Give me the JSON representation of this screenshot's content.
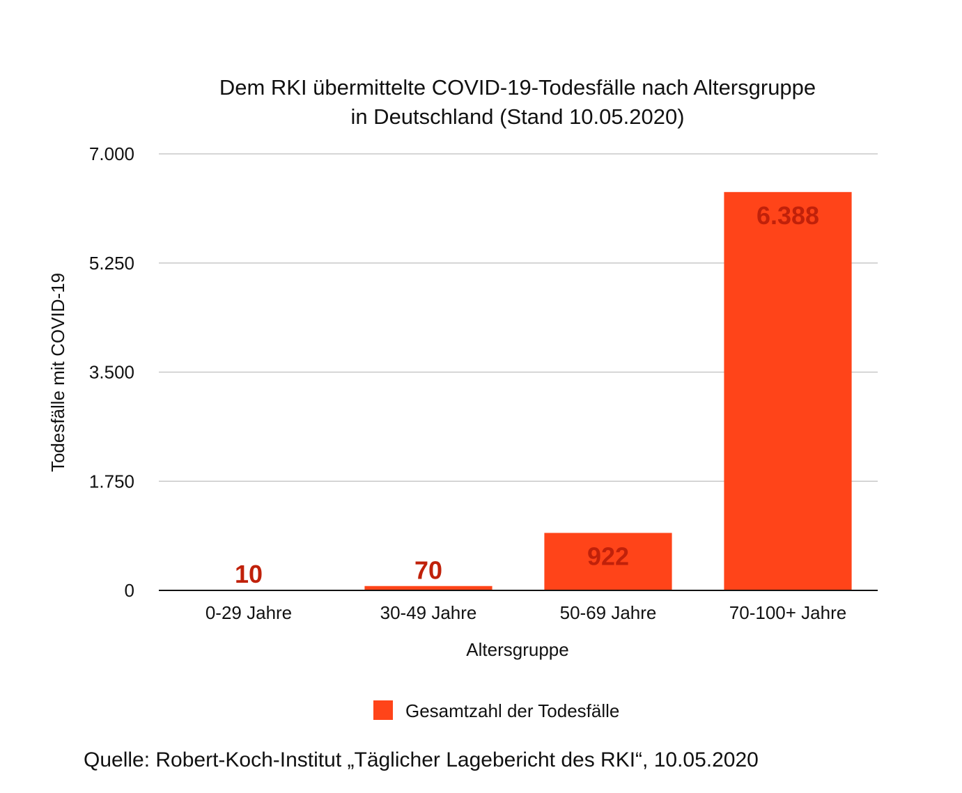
{
  "chart_data": {
    "type": "bar",
    "title_lines": [
      "Dem RKI übermittelte COVID-19-Todesfälle nach Altersgruppe",
      "in Deutschland (Stand 10.05.2020)"
    ],
    "xlabel": "Altersgruppe",
    "ylabel": "Todesfälle mit COVID-19",
    "categories": [
      "0-29 Jahre",
      "30-49 Jahre",
      "50-69 Jahre",
      "70-100+ Jahre"
    ],
    "series": [
      {
        "name": "Gesamtzahl der Todesfälle",
        "values": [
          10,
          70,
          922,
          6388
        ],
        "value_labels": [
          "10",
          "70",
          "922",
          "6.388"
        ],
        "color": "#ff4419",
        "label_color": "#c0210a"
      }
    ],
    "yticks": [
      0,
      1750,
      3500,
      5250,
      7000
    ],
    "ytick_labels": [
      "0",
      "1.750",
      "3.500",
      "5.250",
      "7.000"
    ],
    "ylim": [
      0,
      7000
    ],
    "grid": true,
    "legend": "bottom",
    "source": "Quelle: Robert-Koch-Institut „Täglicher Lagebericht des RKI“, 10.05.2020"
  }
}
